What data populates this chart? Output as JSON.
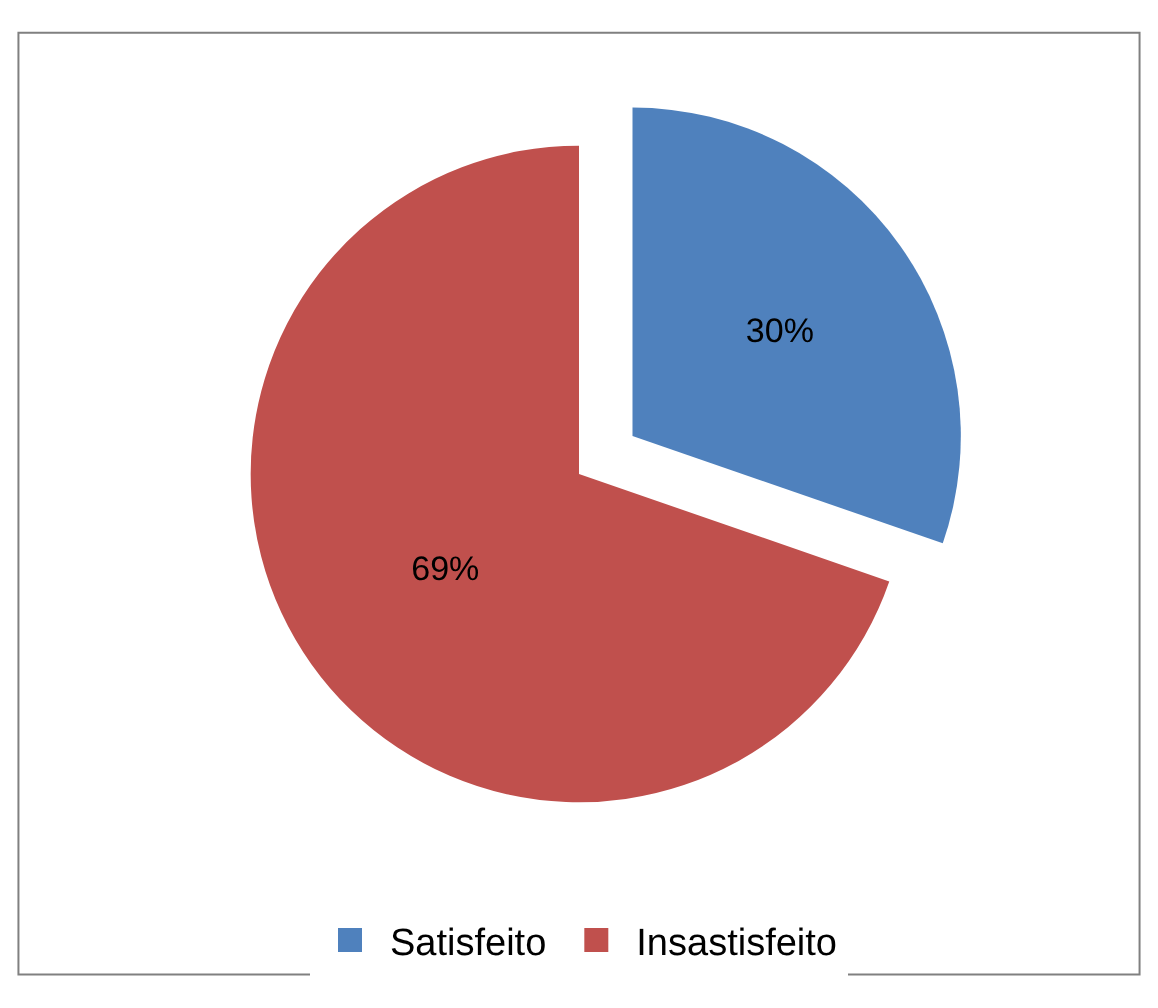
{
  "chart_data": {
    "type": "pie",
    "categories": [
      "Satisfeito",
      "Insastisfeito"
    ],
    "values": [
      30,
      69
    ],
    "colors": [
      "#4f81bd",
      "#c0504d"
    ],
    "value_labels": [
      "30%",
      "69%"
    ],
    "legend": "bottom"
  }
}
